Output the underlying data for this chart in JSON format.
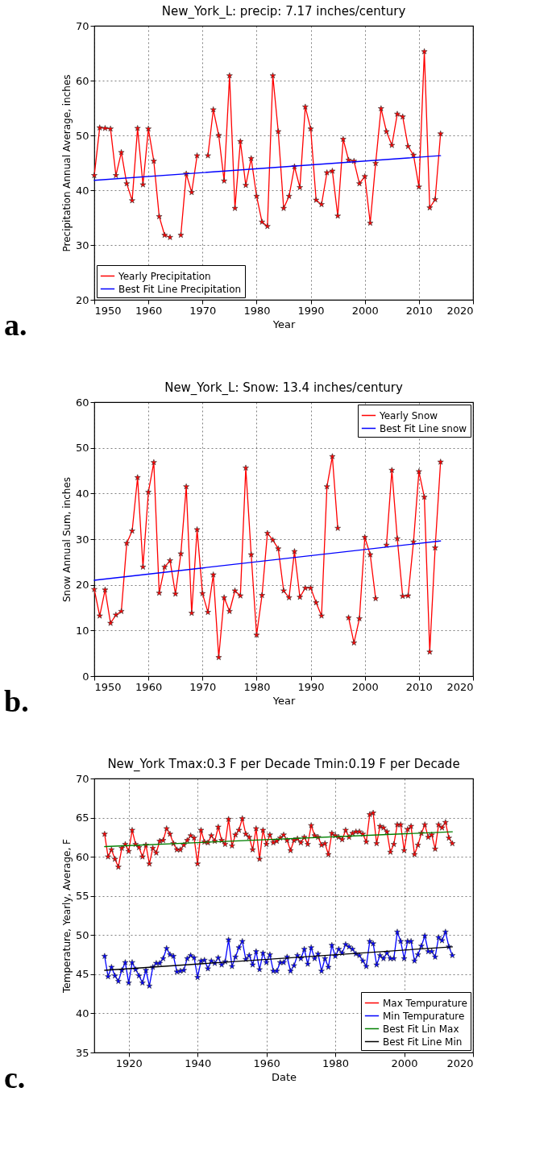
{
  "chart_data": [
    {
      "type": "line",
      "title": "New_York_L: precip: 7.17 inches/century",
      "xlabel": "Year",
      "ylabel": "Precipitation Annual Average, inches",
      "annotations": [
        "a."
      ],
      "xlim": [
        1950,
        2020
      ],
      "xticks": [
        1950,
        1960,
        1970,
        1980,
        1990,
        2000,
        2010,
        2020
      ],
      "ylim": [
        20,
        70
      ],
      "yticks": [
        20,
        30,
        40,
        50,
        60,
        70
      ],
      "grid": true,
      "legend": "bottom left",
      "marker": "star",
      "x": [
        1950,
        1951,
        1952,
        1953,
        1954,
        1955,
        1956,
        1957,
        1958,
        1959,
        1960,
        1961,
        1962,
        1963,
        1964,
        1965,
        1966,
        1967,
        1968,
        1969,
        1970,
        1971,
        1972,
        1973,
        1974,
        1975,
        1976,
        1977,
        1978,
        1979,
        1980,
        1981,
        1982,
        1983,
        1984,
        1985,
        1986,
        1987,
        1988,
        1989,
        1990,
        1991,
        1992,
        1993,
        1994,
        1995,
        1996,
        1997,
        1998,
        1999,
        2000,
        2001,
        2002,
        2003,
        2004,
        2005,
        2006,
        2007,
        2008,
        2009,
        2010,
        2011,
        2012,
        2013,
        2014
      ],
      "series": [
        {
          "name": "Yearly Precipitation",
          "color": "#ff0000",
          "values": [
            42.7,
            51.4,
            51.3,
            51.2,
            42.7,
            46.9,
            41.2,
            38.1,
            51.3,
            41.0,
            51.2,
            45.3,
            35.2,
            31.8,
            31.4,
            null,
            31.8,
            43.0,
            39.6,
            46.3,
            null,
            46.3,
            54.7,
            50.0,
            41.7,
            60.9,
            36.7,
            48.9,
            40.9,
            45.8,
            38.9,
            34.2,
            33.4,
            60.9,
            50.7,
            36.7,
            38.9,
            44.3,
            40.5,
            55.2,
            51.2,
            38.2,
            37.4,
            43.2,
            43.5,
            35.3,
            49.3,
            45.5,
            45.3,
            41.2,
            42.5,
            34.0,
            44.9,
            54.9,
            50.7,
            48.2,
            53.9,
            53.4,
            48.0,
            46.4,
            40.6,
            65.3,
            36.8,
            38.3,
            50.3
          ]
        },
        {
          "name": "Best Fit Line Precipitation",
          "color": "#0000ff",
          "marker": "none",
          "x": [
            1950,
            2014
          ],
          "values": [
            41.8,
            46.3
          ]
        }
      ]
    },
    {
      "type": "line",
      "title": "New_York_L: Snow: 13.4 inches/century",
      "xlabel": "Year",
      "ylabel": "Snow Annual Sum, inches",
      "annotations": [
        "b."
      ],
      "xlim": [
        1950,
        2020
      ],
      "xticks": [
        1950,
        1960,
        1970,
        1980,
        1990,
        2000,
        2010,
        2020
      ],
      "ylim": [
        0,
        60
      ],
      "yticks": [
        0,
        10,
        20,
        30,
        40,
        50,
        60
      ],
      "grid": true,
      "legend": "top right",
      "marker": "star",
      "x": [
        1950,
        1951,
        1952,
        1953,
        1954,
        1955,
        1956,
        1957,
        1958,
        1959,
        1960,
        1961,
        1962,
        1963,
        1964,
        1965,
        1966,
        1967,
        1968,
        1969,
        1970,
        1971,
        1972,
        1973,
        1974,
        1975,
        1976,
        1977,
        1978,
        1979,
        1980,
        1981,
        1982,
        1983,
        1984,
        1985,
        1986,
        1987,
        1988,
        1989,
        1990,
        1991,
        1992,
        1993,
        1994,
        1995,
        1996,
        1997,
        1998,
        1999,
        2000,
        2001,
        2002,
        2003,
        2004,
        2005,
        2006,
        2007,
        2008,
        2009,
        2010,
        2011,
        2012,
        2013,
        2014
      ],
      "series": [
        {
          "name": "Yearly Snow",
          "color": "#ff0000",
          "values": [
            19.0,
            13.2,
            18.9,
            11.6,
            13.4,
            14.2,
            29.1,
            31.8,
            43.5,
            23.9,
            40.3,
            46.8,
            18.2,
            23.9,
            25.3,
            18.0,
            26.8,
            41.5,
            13.8,
            32.1,
            18.1,
            14.0,
            22.2,
            4.1,
            17.2,
            14.2,
            18.7,
            17.6,
            45.6,
            26.6,
            9.0,
            17.7,
            31.3,
            29.8,
            27.9,
            18.7,
            17.2,
            27.3,
            17.3,
            19.3,
            19.3,
            16.1,
            13.2,
            41.5,
            48.1,
            32.4,
            null,
            12.8,
            7.3,
            12.6,
            30.4,
            26.6,
            17.0,
            null,
            28.7,
            45.1,
            30.1,
            17.5,
            17.6,
            29.4,
            44.8,
            39.2,
            5.3,
            28.1,
            46.9
          ]
        },
        {
          "name": "Best Fit Line snow",
          "color": "#0000ff",
          "marker": "none",
          "x": [
            1950,
            2014
          ],
          "values": [
            21.0,
            29.6
          ]
        }
      ]
    },
    {
      "type": "line",
      "title": "New_York  Tmax:0.3 F per Decade  Tmin:0.19 F per Decade",
      "xlabel": "Date",
      "ylabel": "Temperature, Yearly, Average, F",
      "annotations": [
        "c."
      ],
      "xlim": [
        1910,
        2020
      ],
      "xticks": [
        1920,
        1940,
        1960,
        1980,
        2000,
        2020
      ],
      "ylim": [
        35,
        70
      ],
      "yticks": [
        35,
        40,
        45,
        50,
        55,
        60,
        65,
        70
      ],
      "grid": true,
      "legend": "bottom right",
      "marker": "star",
      "x": [
        1913,
        1914,
        1915,
        1916,
        1917,
        1918,
        1919,
        1920,
        1921,
        1922,
        1923,
        1924,
        1925,
        1926,
        1927,
        1928,
        1929,
        1930,
        1931,
        1932,
        1933,
        1934,
        1935,
        1936,
        1937,
        1938,
        1939,
        1940,
        1941,
        1942,
        1943,
        1944,
        1945,
        1946,
        1947,
        1948,
        1949,
        1950,
        1951,
        1952,
        1953,
        1954,
        1955,
        1956,
        1957,
        1958,
        1959,
        1960,
        1961,
        1962,
        1963,
        1964,
        1965,
        1966,
        1967,
        1968,
        1969,
        1970,
        1971,
        1972,
        1973,
        1974,
        1975,
        1976,
        1977,
        1978,
        1979,
        1980,
        1981,
        1982,
        1983,
        1984,
        1985,
        1986,
        1987,
        1988,
        1989,
        1990,
        1991,
        1992,
        1993,
        1994,
        1995,
        1996,
        1997,
        1998,
        1999,
        2000,
        2001,
        2002,
        2003,
        2004,
        2005,
        2006,
        2007,
        2008,
        2009,
        2010,
        2011,
        2012,
        2013,
        2014
      ],
      "series": [
        {
          "name": "Max Tempurature",
          "color": "#ff0000",
          "values": [
            62.9,
            60.0,
            60.9,
            59.7,
            58.7,
            61.1,
            61.6,
            60.7,
            63.4,
            61.6,
            61.2,
            60.0,
            61.5,
            59.1,
            61.1,
            60.5,
            62.0,
            62.1,
            63.6,
            62.9,
            61.7,
            60.9,
            60.9,
            61.5,
            62.1,
            62.7,
            62.4,
            59.1,
            63.4,
            61.9,
            61.8,
            62.7,
            62.0,
            63.8,
            62.1,
            61.6,
            64.8,
            61.4,
            62.8,
            63.4,
            64.9,
            62.9,
            62.5,
            60.9,
            63.6,
            59.7,
            63.4,
            61.6,
            62.8,
            61.8,
            62.0,
            62.4,
            62.8,
            62.1,
            60.8,
            62.1,
            62.3,
            61.8,
            62.5,
            61.6,
            64.0,
            62.7,
            62.5,
            61.5,
            61.7,
            60.3,
            63.0,
            62.7,
            62.5,
            62.2,
            63.4,
            62.5,
            63.0,
            63.2,
            63.2,
            62.9,
            61.9,
            65.4,
            65.6,
            61.7,
            63.9,
            63.7,
            63.2,
            60.6,
            61.6,
            64.1,
            64.1,
            60.8,
            63.5,
            63.9,
            60.3,
            61.5,
            63.0,
            64.1,
            62.5,
            62.8,
            61.0,
            64.1,
            63.7,
            64.4,
            62.4,
            61.7
          ]
        },
        {
          "name": "Min Tempurature",
          "color": "#0000ff",
          "values": [
            47.3,
            44.7,
            45.9,
            44.8,
            44.1,
            45.5,
            46.5,
            43.9,
            46.5,
            45.6,
            44.8,
            43.9,
            45.5,
            43.5,
            45.9,
            46.4,
            46.4,
            47.0,
            48.3,
            47.5,
            47.3,
            45.3,
            45.4,
            45.5,
            47.0,
            47.4,
            47.1,
            44.6,
            46.7,
            46.8,
            45.7,
            46.7,
            46.4,
            47.1,
            46.2,
            46.6,
            49.4,
            46.0,
            47.2,
            48.4,
            49.2,
            46.9,
            47.4,
            46.2,
            47.9,
            45.6,
            47.7,
            46.5,
            47.5,
            45.4,
            45.4,
            46.5,
            46.5,
            47.2,
            45.4,
            46.1,
            47.4,
            47.0,
            48.2,
            46.3,
            48.4,
            47.0,
            47.6,
            45.4,
            47.0,
            45.9,
            48.7,
            47.3,
            48.2,
            47.7,
            48.8,
            48.5,
            48.2,
            47.6,
            47.4,
            46.7,
            46.0,
            49.2,
            48.9,
            46.2,
            47.4,
            47.0,
            47.7,
            47.0,
            47.0,
            50.4,
            49.2,
            47.0,
            49.2,
            49.2,
            46.7,
            47.5,
            48.6,
            49.9,
            47.9,
            47.9,
            47.2,
            49.7,
            49.3,
            50.4,
            48.5,
            47.4
          ]
        },
        {
          "name": "Best Fit Lin Max",
          "color": "#008000",
          "marker": "none",
          "x": [
            1913,
            2014
          ],
          "values": [
            61.3,
            63.2
          ]
        },
        {
          "name": "Best Fit Line Min",
          "color": "#000000",
          "marker": "none",
          "x": [
            1913,
            2014
          ],
          "values": [
            45.5,
            48.5
          ]
        }
      ]
    }
  ]
}
